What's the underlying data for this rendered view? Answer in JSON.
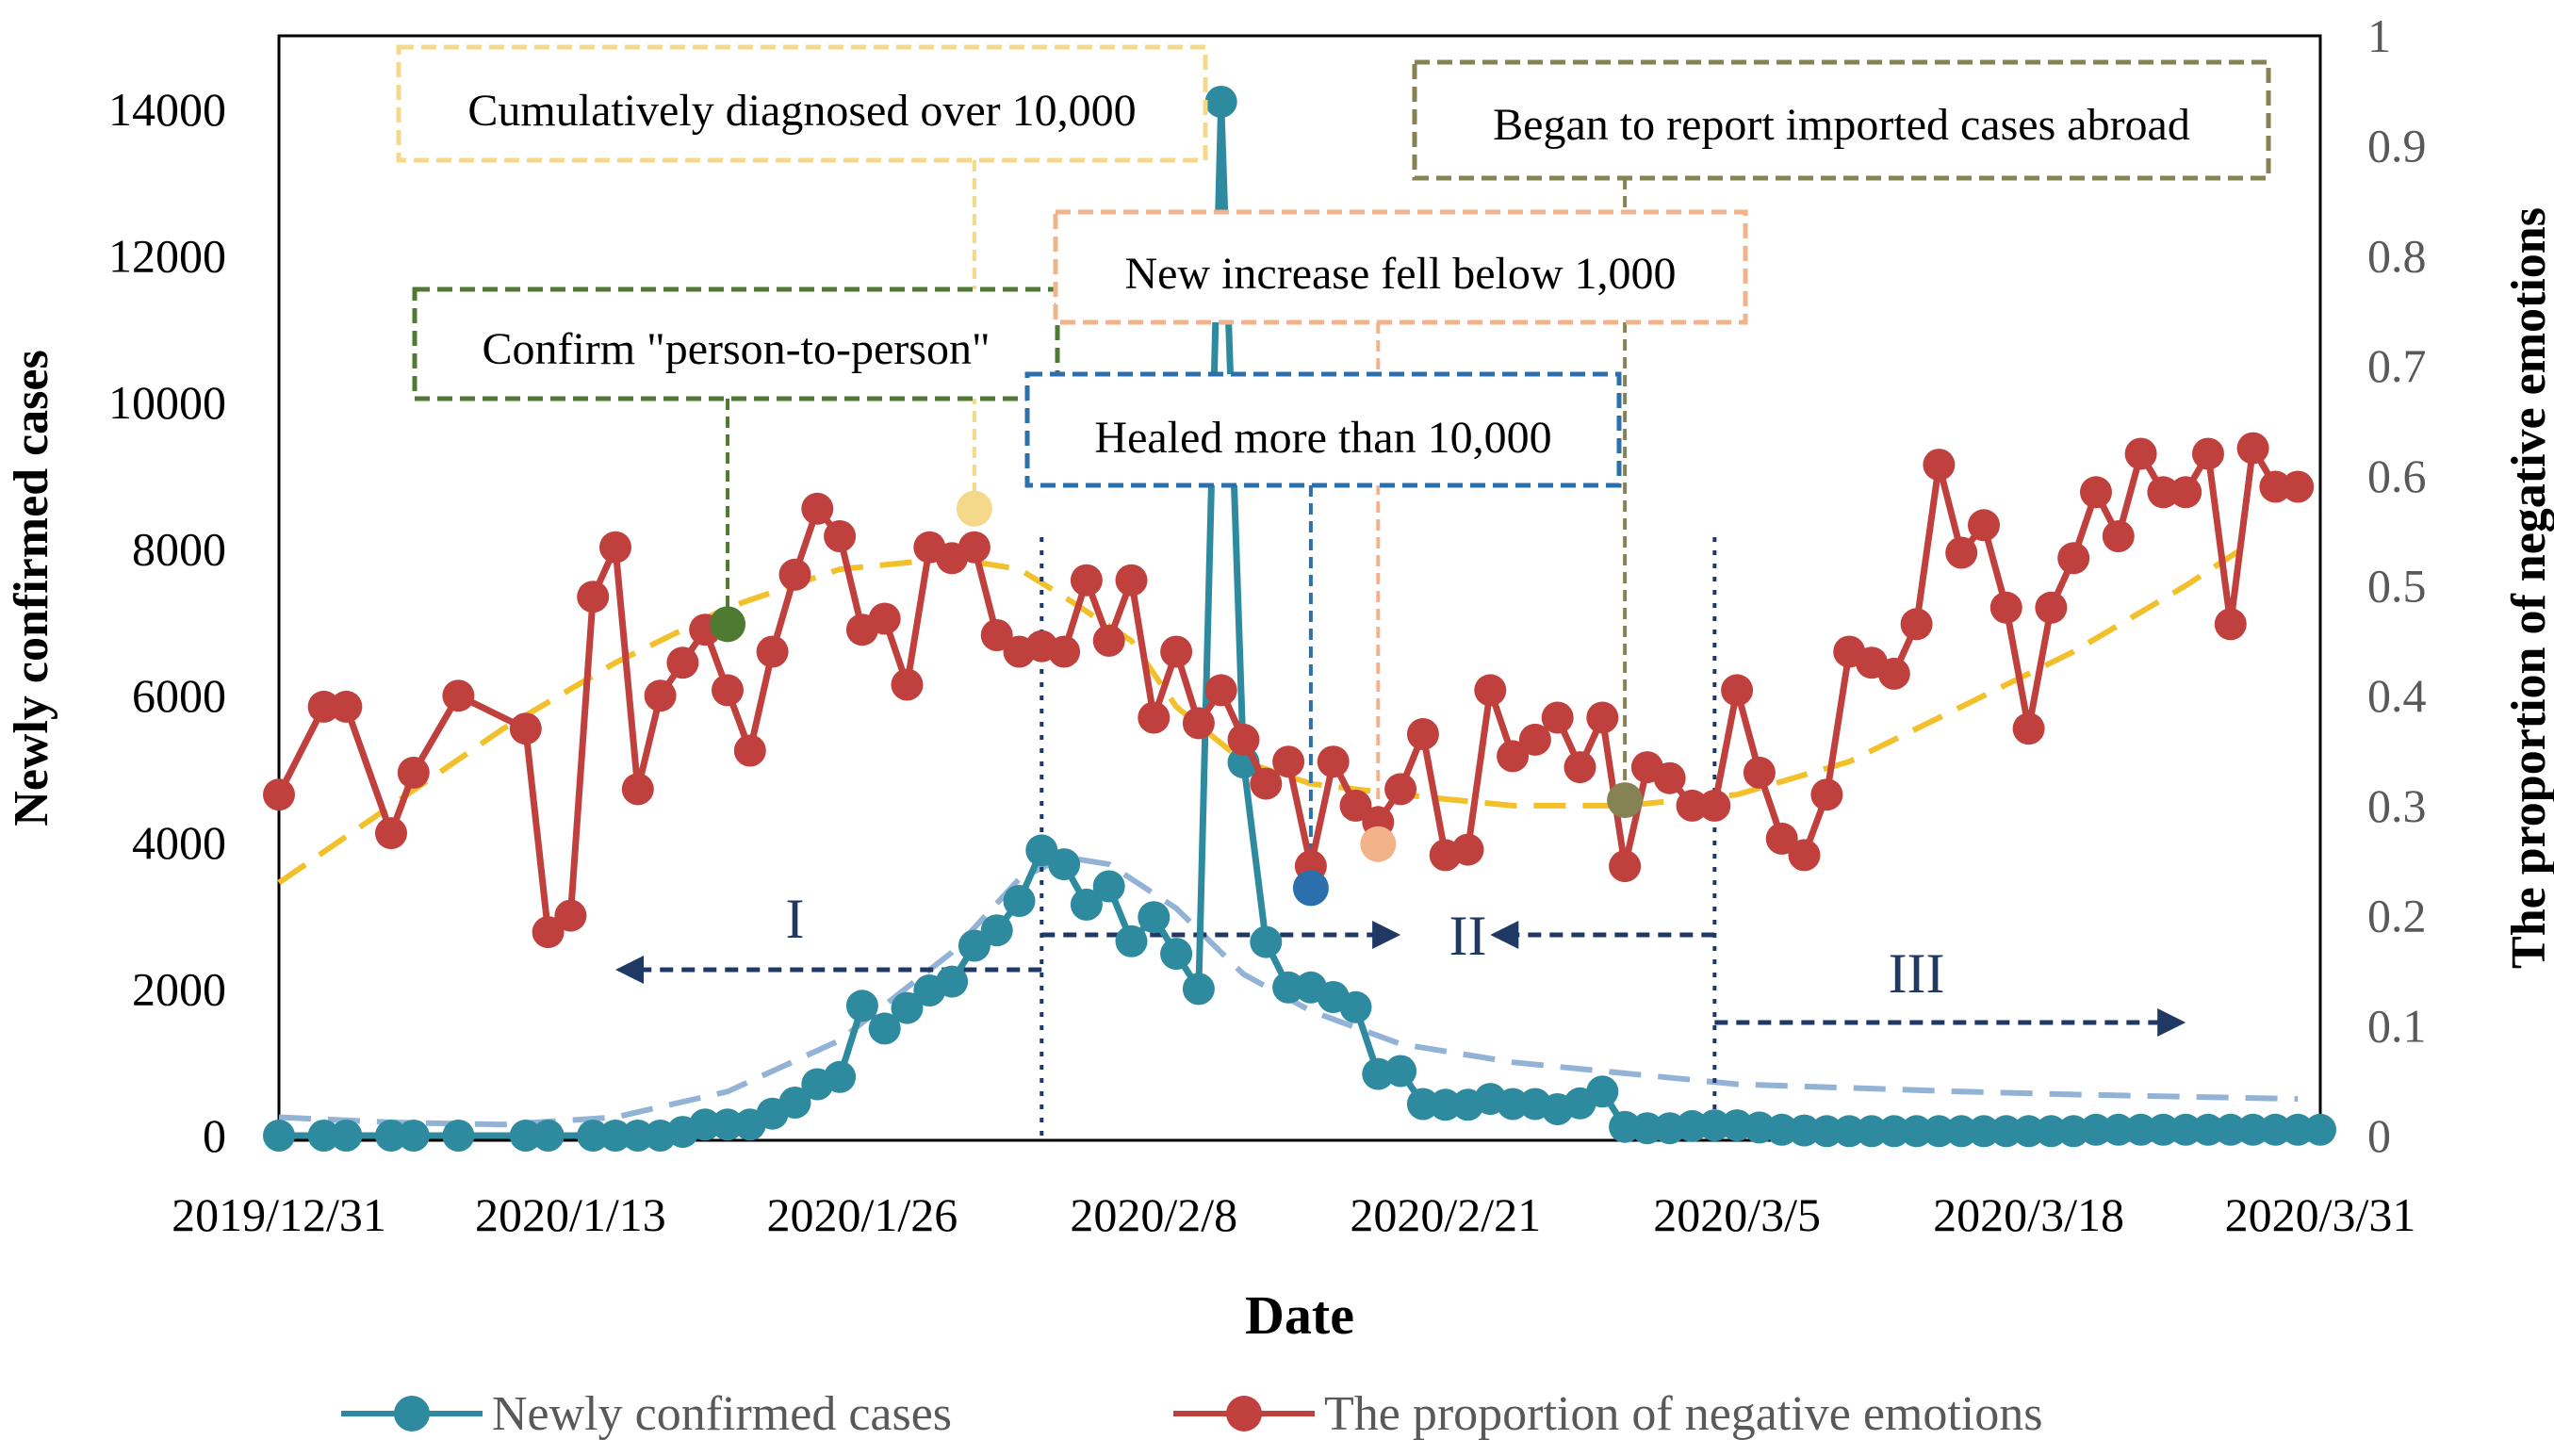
{
  "chart_data": {
    "type": "line",
    "xlabel": "Date",
    "ylabel_left": "Newly confirmed cases",
    "ylabel_right": "The proportion of negative emotions",
    "x_range": [
      0,
      91
    ],
    "x_ticks": [
      {
        "day": 0,
        "label": "2019/12/31"
      },
      {
        "day": 13,
        "label": "2020/1/13"
      },
      {
        "day": 26,
        "label": "2020/1/26"
      },
      {
        "day": 39,
        "label": "2020/2/8"
      },
      {
        "day": 52,
        "label": "2020/2/21"
      },
      {
        "day": 65,
        "label": "2020/3/5"
      },
      {
        "day": 78,
        "label": "2020/3/18"
      },
      {
        "day": 91,
        "label": "2020/3/31"
      }
    ],
    "y_left": {
      "min": 0,
      "max": 15000,
      "ticks": [
        0,
        2000,
        4000,
        6000,
        8000,
        10000,
        12000,
        14000
      ]
    },
    "y_right": {
      "min": 0,
      "max": 1,
      "ticks": [
        0,
        0.1,
        0.2,
        0.3,
        0.4,
        0.5,
        0.6,
        0.7,
        0.8,
        0.9,
        1
      ],
      "tick_labels": [
        "0",
        "0.1",
        "0.2",
        "0.3",
        "0.4",
        "0.5",
        "0.6",
        "0.7",
        "0.8",
        "0.9",
        "1"
      ]
    },
    "series": [
      {
        "name": "Newly confirmed cases",
        "axis": "left",
        "color": "#2e8a9f",
        "points": [
          [
            0,
            0
          ],
          [
            2,
            0
          ],
          [
            3,
            0
          ],
          [
            5,
            0
          ],
          [
            6,
            0
          ],
          [
            8,
            0
          ],
          [
            11,
            0
          ],
          [
            12,
            0
          ],
          [
            14,
            0
          ],
          [
            15,
            0
          ],
          [
            16,
            0
          ],
          [
            17,
            0
          ],
          [
            18,
            50
          ],
          [
            19,
            150
          ],
          [
            20,
            150
          ],
          [
            21,
            150
          ],
          [
            22,
            300
          ],
          [
            23,
            450
          ],
          [
            24,
            700
          ],
          [
            25,
            800
          ],
          [
            26,
            1770
          ],
          [
            27,
            1460
          ],
          [
            28,
            1740
          ],
          [
            29,
            1980
          ],
          [
            30,
            2100
          ],
          [
            31,
            2590
          ],
          [
            32,
            2800
          ],
          [
            33,
            3200
          ],
          [
            34,
            3890
          ],
          [
            35,
            3700
          ],
          [
            36,
            3150
          ],
          [
            37,
            3400
          ],
          [
            38,
            2650
          ],
          [
            39,
            2980
          ],
          [
            40,
            2480
          ],
          [
            41,
            2000
          ],
          [
            42,
            14100
          ],
          [
            43,
            5090
          ],
          [
            44,
            2640
          ],
          [
            45,
            2020
          ],
          [
            46,
            2020
          ],
          [
            47,
            1890
          ],
          [
            48,
            1750
          ],
          [
            49,
            840
          ],
          [
            50,
            880
          ],
          [
            51,
            430
          ],
          [
            52,
            420
          ],
          [
            53,
            420
          ],
          [
            54,
            500
          ],
          [
            55,
            430
          ],
          [
            56,
            430
          ],
          [
            57,
            360
          ],
          [
            58,
            440
          ],
          [
            59,
            600
          ],
          [
            60,
            120
          ],
          [
            61,
            100
          ],
          [
            62,
            100
          ],
          [
            63,
            130
          ],
          [
            64,
            140
          ],
          [
            65,
            140
          ],
          [
            66,
            110
          ],
          [
            67,
            80
          ],
          [
            68,
            70
          ],
          [
            69,
            60
          ],
          [
            70,
            60
          ],
          [
            71,
            60
          ],
          [
            72,
            60
          ],
          [
            73,
            60
          ],
          [
            74,
            60
          ],
          [
            75,
            60
          ],
          [
            76,
            60
          ],
          [
            77,
            60
          ],
          [
            78,
            60
          ],
          [
            79,
            60
          ],
          [
            80,
            60
          ],
          [
            81,
            80
          ],
          [
            82,
            80
          ],
          [
            83,
            80
          ],
          [
            84,
            80
          ],
          [
            85,
            80
          ],
          [
            86,
            80
          ],
          [
            87,
            80
          ],
          [
            88,
            80
          ],
          [
            89,
            80
          ],
          [
            90,
            80
          ],
          [
            91,
            80
          ]
        ]
      },
      {
        "name": "The proportion of negative emotions",
        "axis": "right",
        "color": "#c0403e",
        "points": [
          [
            0,
            0.31
          ],
          [
            2,
            0.39
          ],
          [
            3,
            0.39
          ],
          [
            5,
            0.275
          ],
          [
            6,
            0.33
          ],
          [
            8,
            0.4
          ],
          [
            11,
            0.37
          ],
          [
            12,
            0.185
          ],
          [
            13,
            0.2
          ],
          [
            14,
            0.49
          ],
          [
            15,
            0.535
          ],
          [
            16,
            0.315
          ],
          [
            17,
            0.4
          ],
          [
            18,
            0.43
          ],
          [
            19,
            0.46
          ],
          [
            20,
            0.405
          ],
          [
            21,
            0.35
          ],
          [
            22,
            0.44
          ],
          [
            23,
            0.51
          ],
          [
            24,
            0.57
          ],
          [
            25,
            0.545
          ],
          [
            26,
            0.46
          ],
          [
            27,
            0.47
          ],
          [
            28,
            0.41
          ],
          [
            29,
            0.535
          ],
          [
            30,
            0.525
          ],
          [
            31,
            0.535
          ],
          [
            32,
            0.455
          ],
          [
            33,
            0.44
          ],
          [
            34,
            0.445
          ],
          [
            35,
            0.44
          ],
          [
            36,
            0.505
          ],
          [
            37,
            0.45
          ],
          [
            38,
            0.505
          ],
          [
            39,
            0.38
          ],
          [
            40,
            0.44
          ],
          [
            41,
            0.375
          ],
          [
            42,
            0.405
          ],
          [
            43,
            0.36
          ],
          [
            44,
            0.32
          ],
          [
            45,
            0.34
          ],
          [
            46,
            0.245
          ],
          [
            47,
            0.34
          ],
          [
            48,
            0.3
          ],
          [
            49,
            0.285
          ],
          [
            50,
            0.315
          ],
          [
            51,
            0.365
          ],
          [
            52,
            0.255
          ],
          [
            53,
            0.26
          ],
          [
            54,
            0.405
          ],
          [
            55,
            0.345
          ],
          [
            56,
            0.36
          ],
          [
            57,
            0.38
          ],
          [
            58,
            0.335
          ],
          [
            59,
            0.38
          ],
          [
            60,
            0.245
          ],
          [
            61,
            0.335
          ],
          [
            62,
            0.325
          ],
          [
            63,
            0.3
          ],
          [
            64,
            0.3
          ],
          [
            65,
            0.405
          ],
          [
            66,
            0.33
          ],
          [
            67,
            0.27
          ],
          [
            68,
            0.255
          ],
          [
            69,
            0.31
          ],
          [
            70,
            0.44
          ],
          [
            71,
            0.43
          ],
          [
            72,
            0.42
          ],
          [
            73,
            0.465
          ],
          [
            74,
            0.61
          ],
          [
            75,
            0.53
          ],
          [
            76,
            0.555
          ],
          [
            77,
            0.48
          ],
          [
            78,
            0.37
          ],
          [
            79,
            0.48
          ],
          [
            80,
            0.525
          ],
          [
            81,
            0.585
          ],
          [
            82,
            0.545
          ],
          [
            83,
            0.62
          ],
          [
            84,
            0.585
          ],
          [
            85,
            0.585
          ],
          [
            86,
            0.62
          ],
          [
            87,
            0.465
          ],
          [
            88,
            0.625
          ],
          [
            89,
            0.59
          ],
          [
            90,
            0.59
          ]
        ]
      }
    ],
    "trend_lines": [
      {
        "name": "Newly confirmed cases trend",
        "color": "#93b3d6",
        "points": [
          [
            0,
            250
          ],
          [
            5,
            180
          ],
          [
            10,
            150
          ],
          [
            15,
            250
          ],
          [
            20,
            600
          ],
          [
            25,
            1300
          ],
          [
            30,
            2500
          ],
          [
            33,
            3500
          ],
          [
            35,
            3800
          ],
          [
            37,
            3700
          ],
          [
            40,
            3100
          ],
          [
            43,
            2200
          ],
          [
            46,
            1700
          ],
          [
            50,
            1250
          ],
          [
            55,
            1000
          ],
          [
            60,
            850
          ],
          [
            65,
            700
          ],
          [
            70,
            650
          ],
          [
            75,
            600
          ],
          [
            80,
            560
          ],
          [
            85,
            530
          ],
          [
            90,
            500
          ]
        ]
      },
      {
        "name": "Negative emotions trend",
        "color": "#f2c02a",
        "points": [
          [
            0,
            0.23
          ],
          [
            5,
            0.3
          ],
          [
            10,
            0.37
          ],
          [
            15,
            0.43
          ],
          [
            20,
            0.48
          ],
          [
            25,
            0.515
          ],
          [
            30,
            0.525
          ],
          [
            33,
            0.515
          ],
          [
            35,
            0.49
          ],
          [
            38,
            0.45
          ],
          [
            40,
            0.39
          ],
          [
            43,
            0.34
          ],
          [
            46,
            0.32
          ],
          [
            50,
            0.31
          ],
          [
            55,
            0.3
          ],
          [
            60,
            0.3
          ],
          [
            65,
            0.31
          ],
          [
            70,
            0.34
          ],
          [
            75,
            0.39
          ],
          [
            80,
            0.44
          ],
          [
            85,
            0.5
          ],
          [
            88,
            0.54
          ]
        ]
      }
    ],
    "phase_dividers": [
      34,
      64
    ],
    "phases": [
      {
        "label": "I",
        "label_day": 23,
        "arrow_from": 34,
        "arrow_to": 15
      },
      {
        "label": "II",
        "label_day": 53,
        "arrow_segments": [
          [
            34,
            50
          ],
          [
            64,
            54
          ]
        ]
      },
      {
        "label": "III",
        "label_day": 73,
        "arrow_from": 64,
        "arrow_to": 85
      }
    ],
    "annotations": [
      {
        "text": "Confirm \"person-to-person\"",
        "day": 20,
        "value": 0.465,
        "color": "#4f7a32"
      },
      {
        "text": "Cumulatively diagnosed over 10,000",
        "day": 31,
        "value": 0.57,
        "color": "#f5d98a"
      },
      {
        "text": "Healed more than 10,000",
        "day": 46,
        "value": 0.225,
        "color": "#2c6fad"
      },
      {
        "text": "New increase fell below 1,000",
        "day": 49,
        "value": 0.265,
        "color": "#f2b38a"
      },
      {
        "text": "Began to report imported cases abroad",
        "day": 60,
        "value": 0.305,
        "color": "#858253"
      }
    ],
    "legend": {
      "position": "bottom"
    }
  }
}
